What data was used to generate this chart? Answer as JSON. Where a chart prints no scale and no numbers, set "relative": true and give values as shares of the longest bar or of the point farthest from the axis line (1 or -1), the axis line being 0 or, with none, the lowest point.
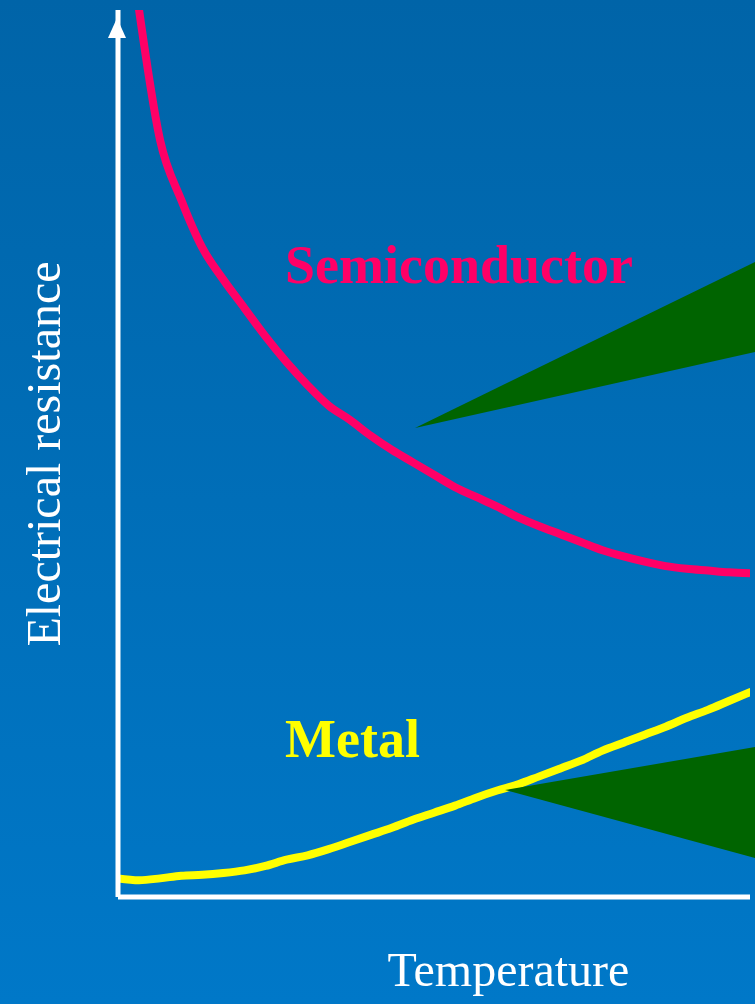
{
  "chart_data": {
    "type": "line",
    "relative": true,
    "xlabel": "Temperature",
    "ylabel": "Electrical resistance",
    "marker": "none",
    "line_style": "solid",
    "categories": [
      null,
      null,
      null,
      null,
      null,
      null,
      null,
      null,
      null,
      null,
      null,
      null,
      null,
      null,
      null,
      null,
      null,
      null,
      null,
      null,
      null,
      null,
      null,
      null,
      null,
      null,
      null,
      null,
      null,
      null,
      null
    ],
    "series": [
      {
        "name": "Semiconductor",
        "color": "#ff0066",
        "values": [
          null,
          1.0,
          0.853,
          0.786,
          0.732,
          0.696,
          0.664,
          0.632,
          0.603,
          0.577,
          0.554,
          0.538,
          0.52,
          0.504,
          0.49,
          0.476,
          0.462,
          0.451,
          0.44,
          0.428,
          0.418,
          0.409,
          0.4,
          0.391,
          0.384,
          0.378,
          0.373,
          0.37,
          0.368,
          0.366,
          0.365
        ]
      },
      {
        "name": "Metal",
        "color": "#ffff00",
        "values": [
          0.021,
          0.019,
          0.021,
          0.024,
          0.025,
          0.027,
          0.03,
          0.035,
          0.042,
          0.047,
          0.054,
          0.062,
          0.07,
          0.078,
          0.087,
          0.095,
          0.103,
          0.112,
          0.12,
          0.127,
          0.136,
          0.145,
          0.154,
          0.165,
          0.174,
          0.183,
          0.192,
          0.202,
          0.211,
          0.221,
          0.231
        ]
      }
    ]
  }
}
